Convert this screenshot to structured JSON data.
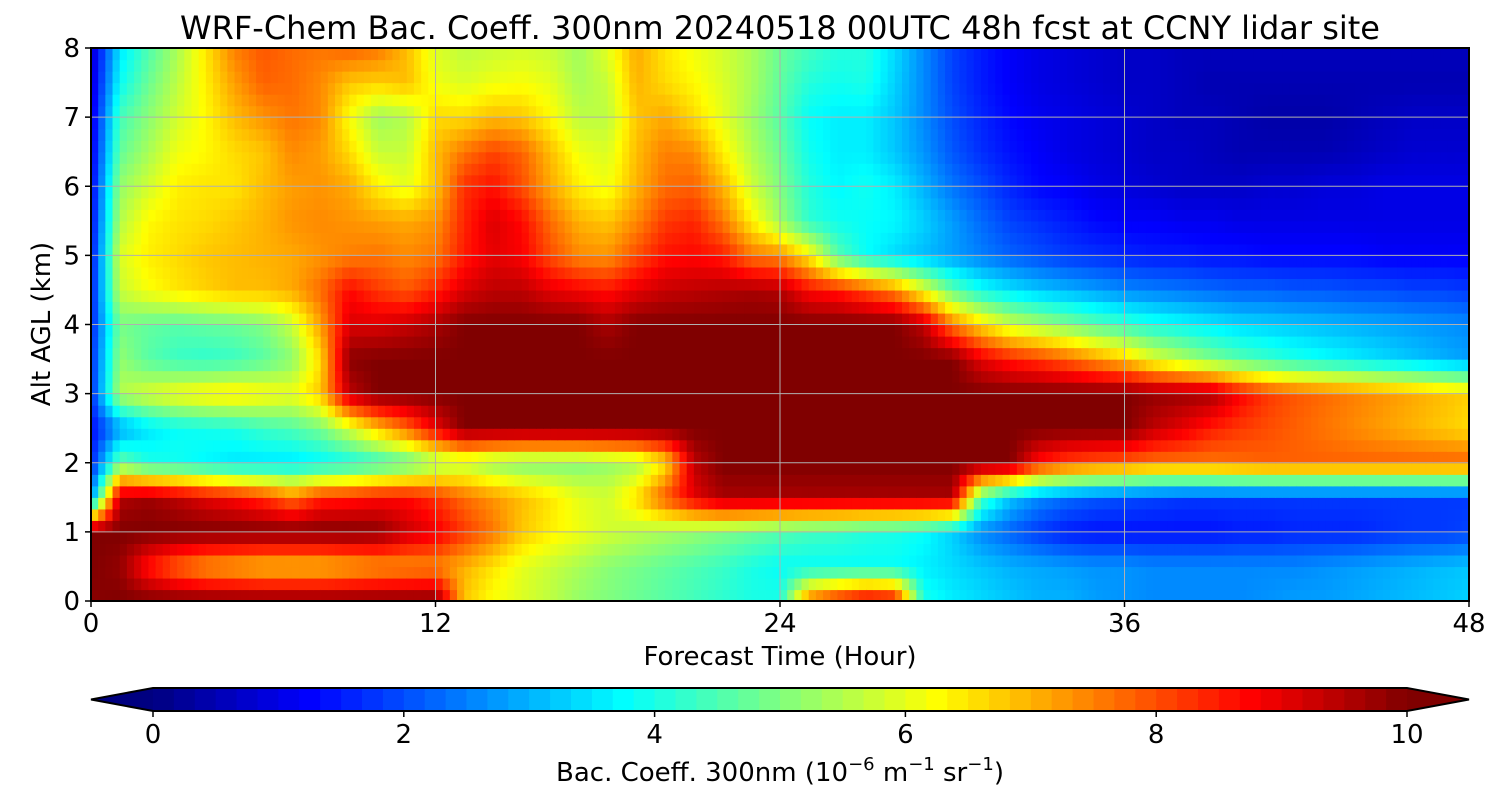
{
  "chart_data": {
    "type": "heatmap",
    "title": "WRF-Chem Bac. Coeff. 300nm  20240518 00UTC 48h fcst at CCNY lidar site",
    "xlabel": "Forecast Time (Hour)",
    "ylabel": "Alt AGL (km)",
    "xlim": [
      0,
      48
    ],
    "ylim": [
      0,
      8
    ],
    "x_ticks": [
      0,
      12,
      24,
      36,
      48
    ],
    "y_ticks": [
      0,
      1,
      2,
      3,
      4,
      5,
      6,
      7,
      8
    ],
    "grid": true,
    "colorbar": {
      "label": "Bac. Coeff. 300nm",
      "units_base": "10",
      "units_exp": "−6",
      "units_m": "m",
      "units_m_exp": "−1",
      "units_sr": "sr",
      "units_sr_exp": "−1",
      "range": [
        0,
        10
      ],
      "ticks": [
        0,
        2,
        4,
        6,
        8,
        10
      ],
      "extend": "both",
      "colormap": "jet",
      "orientation": "horizontal"
    },
    "x": [
      0,
      1,
      2,
      3,
      4,
      5,
      6,
      7,
      8,
      9,
      10,
      11,
      12,
      13,
      14,
      15,
      16,
      17,
      18,
      19,
      20,
      21,
      22,
      23,
      24,
      25,
      26,
      27,
      28,
      29,
      30,
      31,
      32,
      33,
      34,
      35,
      36,
      37,
      38,
      39,
      40,
      41,
      42,
      43,
      44,
      45,
      46,
      47,
      48
    ],
    "y": [
      0,
      0.5,
      1,
      1.5,
      2,
      2.5,
      3,
      3.5,
      4,
      4.5,
      5,
      5.5,
      6,
      6.5,
      7,
      7.5,
      8
    ],
    "values": [
      [
        9.9,
        10.0,
        10.0,
        10.0,
        10.0,
        10.0,
        10.0,
        10.0,
        10.0,
        10.0,
        10.0,
        10.0,
        10.0,
        6.8,
        6.2,
        5.9,
        5.6,
        5.2,
        5.0,
        4.8,
        4.6,
        4.4,
        4.2,
        4.0,
        4.0,
        7.7,
        8.6,
        9.2,
        8.9,
        4.0,
        3.6,
        3.4,
        3.2,
        3.0,
        3.0,
        2.8,
        2.7,
        2.6,
        2.6,
        2.6,
        2.6,
        2.7,
        2.8,
        2.8,
        2.9,
        3.0,
        3.1,
        3.2,
        3.3
      ],
      [
        10.0,
        9.8,
        8.5,
        7.7,
        7.2,
        7.0,
        6.8,
        6.8,
        6.8,
        7.0,
        7.2,
        7.3,
        7.4,
        7.0,
        6.5,
        6.0,
        5.7,
        5.4,
        5.1,
        4.9,
        4.7,
        4.5,
        4.3,
        4.0,
        3.8,
        3.8,
        3.8,
        3.8,
        3.8,
        3.6,
        3.4,
        3.2,
        3.0,
        2.9,
        2.8,
        2.7,
        2.7,
        2.6,
        2.6,
        2.6,
        2.6,
        2.6,
        2.6,
        2.7,
        2.8,
        2.9,
        3.0,
        3.1,
        3.2
      ],
      [
        10.0,
        10.0,
        10.0,
        10.0,
        10.0,
        10.0,
        10.0,
        10.0,
        10.0,
        10.0,
        9.9,
        9.3,
        8.9,
        8.2,
        7.6,
        6.8,
        6.4,
        6.1,
        5.8,
        5.6,
        5.4,
        5.2,
        5.0,
        4.8,
        4.6,
        4.4,
        4.3,
        4.1,
        4.0,
        3.8,
        3.3,
        2.6,
        2.2,
        1.8,
        1.5,
        1.4,
        1.4,
        1.4,
        1.4,
        1.4,
        1.5,
        1.5,
        1.6,
        1.6,
        1.6,
        1.7,
        1.8,
        1.8,
        1.9
      ],
      [
        2.5,
        9.5,
        9.7,
        9.4,
        9.0,
        8.7,
        8.3,
        7.6,
        8.4,
        8.5,
        8.7,
        8.7,
        8.3,
        7.7,
        7.3,
        6.9,
        6.5,
        6.0,
        5.8,
        6.6,
        7.9,
        9.0,
        9.6,
        9.6,
        9.6,
        9.6,
        9.6,
        9.6,
        9.6,
        9.6,
        9.6,
        4.5,
        3.2,
        2.6,
        2.3,
        2.1,
        2.0,
        1.9,
        1.8,
        1.8,
        1.8,
        1.8,
        1.8,
        1.8,
        1.8,
        1.8,
        1.8,
        1.8,
        1.8
      ],
      [
        1.5,
        4.8,
        4.0,
        3.9,
        3.7,
        3.5,
        3.5,
        3.5,
        3.7,
        3.9,
        4.2,
        4.6,
        5.3,
        5.6,
        5.2,
        5.0,
        5.0,
        5.0,
        5.2,
        5.4,
        6.5,
        9.4,
        10.0,
        10.0,
        10.0,
        10.0,
        10.0,
        10.0,
        10.0,
        10.0,
        10.0,
        10.0,
        10.0,
        8.6,
        8.1,
        7.9,
        7.8,
        7.6,
        7.6,
        7.6,
        7.7,
        7.8,
        7.8,
        7.8,
        7.8,
        7.8,
        7.8,
        7.8,
        7.8
      ],
      [
        1.3,
        2.8,
        3.5,
        3.8,
        3.9,
        4.0,
        4.3,
        4.5,
        4.9,
        5.8,
        6.8,
        7.7,
        8.9,
        10.0,
        10.0,
        10.0,
        10.0,
        10.0,
        10.0,
        10.0,
        10.0,
        10.0,
        10.0,
        10.0,
        10.0,
        10.0,
        10.0,
        10.0,
        10.0,
        10.0,
        10.0,
        10.0,
        10.0,
        10.0,
        10.0,
        10.0,
        10.0,
        9.4,
        9.0,
        8.5,
        8.2,
        8.0,
        7.8,
        7.6,
        7.4,
        7.2,
        7.0,
        6.8,
        6.6
      ],
      [
        1.6,
        5.5,
        5.9,
        6.2,
        6.4,
        6.5,
        6.3,
        6.1,
        6.8,
        9.4,
        10.0,
        10.0,
        10.0,
        10.0,
        10.0,
        10.0,
        10.0,
        10.0,
        10.0,
        10.0,
        10.0,
        10.0,
        10.0,
        10.0,
        10.0,
        10.0,
        10.0,
        10.0,
        10.0,
        10.0,
        10.0,
        10.0,
        10.0,
        10.0,
        10.0,
        10.0,
        10.0,
        9.8,
        9.7,
        9.6,
        8.8,
        8.2,
        7.9,
        7.7,
        7.5,
        7.3,
        7.1,
        6.9,
        6.7
      ],
      [
        1.6,
        5.2,
        4.6,
        4.3,
        4.2,
        4.3,
        4.6,
        5.1,
        6.6,
        9.9,
        10.0,
        10.0,
        10.0,
        10.0,
        10.0,
        10.0,
        10.0,
        10.0,
        10.0,
        10.0,
        10.0,
        10.0,
        10.0,
        10.0,
        10.0,
        10.0,
        10.0,
        10.0,
        10.0,
        10.0,
        10.0,
        9.0,
        8.5,
        8.2,
        7.8,
        7.3,
        6.8,
        6.0,
        5.5,
        5.0,
        4.6,
        4.3,
        4.0,
        3.8,
        3.6,
        3.4,
        3.2,
        3.0,
        2.8
      ],
      [
        1.5,
        4.9,
        4.7,
        4.6,
        4.7,
        4.8,
        5.0,
        5.7,
        7.2,
        9.1,
        9.1,
        9.3,
        9.6,
        10.0,
        10.0,
        10.0,
        10.0,
        10.0,
        9.6,
        10.0,
        10.0,
        10.0,
        10.0,
        10.0,
        10.0,
        10.0,
        10.0,
        10.0,
        10.0,
        9.4,
        7.6,
        6.6,
        5.8,
        5.4,
        5.0,
        4.6,
        4.3,
        4.0,
        3.8,
        3.6,
        3.4,
        3.3,
        3.2,
        3.1,
        3.0,
        2.9,
        2.8,
        2.7,
        2.6
      ],
      [
        1.4,
        5.7,
        6.2,
        6.5,
        6.7,
        6.9,
        6.9,
        7.1,
        7.7,
        8.7,
        8.2,
        7.9,
        8.4,
        9.1,
        9.4,
        9.4,
        9.0,
        8.8,
        8.6,
        9.0,
        9.3,
        9.4,
        9.5,
        9.6,
        9.5,
        8.7,
        8.5,
        8.0,
        7.4,
        6.1,
        4.7,
        3.9,
        3.5,
        3.2,
        3.0,
        2.8,
        2.6,
        2.5,
        2.4,
        2.3,
        2.2,
        2.2,
        2.1,
        2.1,
        2.0,
        2.0,
        1.9,
        1.9,
        1.8
      ],
      [
        1.3,
        5.9,
        6.4,
        6.6,
        6.8,
        6.9,
        7.0,
        7.1,
        7.3,
        7.5,
        7.6,
        7.4,
        7.6,
        8.5,
        9.0,
        8.8,
        8.0,
        7.4,
        7.3,
        8.0,
        8.6,
        8.7,
        8.5,
        7.6,
        7.4,
        6.4,
        4.6,
        3.8,
        3.4,
        3.1,
        2.8,
        2.5,
        2.2,
        2.0,
        1.8,
        1.7,
        1.6,
        1.5,
        1.5,
        1.4,
        1.4,
        1.3,
        1.3,
        1.3,
        1.3,
        1.2,
        1.2,
        1.2,
        1.2
      ],
      [
        1.2,
        5.5,
        6.3,
        6.5,
        6.6,
        6.8,
        7.0,
        7.3,
        7.4,
        7.3,
        7.2,
        7.1,
        7.3,
        8.4,
        9.1,
        8.7,
        7.7,
        7.0,
        6.8,
        7.4,
        8.2,
        8.4,
        7.6,
        6.4,
        5.3,
        4.2,
        3.9,
        3.8,
        3.7,
        3.3,
        2.8,
        2.3,
        1.9,
        1.7,
        1.5,
        1.3,
        1.2,
        1.2,
        1.1,
        1.1,
        1.0,
        1.0,
        1.0,
        1.0,
        1.0,
        1.0,
        1.0,
        1.0,
        1.0
      ],
      [
        1.1,
        5.2,
        5.8,
        6.4,
        6.5,
        6.5,
        6.9,
        7.2,
        7.3,
        7.1,
        6.4,
        6.0,
        6.8,
        8.3,
        8.6,
        8.0,
        7.1,
        6.4,
        6.1,
        7.0,
        7.7,
        7.8,
        7.0,
        5.8,
        5.0,
        4.1,
        3.7,
        3.9,
        3.6,
        3.0,
        2.4,
        2.0,
        1.6,
        1.3,
        1.2,
        1.0,
        0.9,
        0.8,
        0.7,
        0.7,
        0.7,
        0.8,
        0.8,
        0.9,
        0.9,
        1.0,
        1.0,
        1.0,
        1.0
      ],
      [
        1.0,
        4.7,
        5.4,
        6.1,
        6.3,
        6.6,
        6.8,
        7.4,
        7.2,
        6.6,
        5.7,
        5.7,
        6.9,
        7.6,
        8.1,
        7.8,
        6.9,
        6.1,
        5.9,
        6.9,
        7.5,
        7.4,
        6.4,
        5.5,
        4.8,
        3.9,
        3.6,
        3.6,
        3.2,
        2.7,
        2.1,
        1.7,
        1.4,
        1.2,
        1.0,
        0.9,
        0.8,
        0.7,
        0.7,
        0.6,
        0.5,
        0.5,
        0.5,
        0.5,
        0.6,
        0.7,
        0.8,
        0.8,
        0.8
      ],
      [
        0.9,
        4.4,
        5.1,
        5.8,
        6.3,
        6.9,
        7.3,
        7.6,
        7.4,
        6.2,
        5.3,
        5.5,
        6.6,
        6.6,
        6.9,
        6.8,
        6.3,
        5.6,
        5.6,
        6.8,
        7.1,
        6.6,
        6.0,
        5.3,
        4.6,
        3.8,
        3.6,
        3.6,
        3.2,
        2.6,
        2.0,
        1.6,
        1.3,
        1.1,
        1.0,
        0.9,
        0.8,
        0.7,
        0.6,
        0.6,
        0.5,
        0.4,
        0.4,
        0.4,
        0.5,
        0.6,
        0.7,
        0.7,
        0.7
      ],
      [
        0.8,
        3.8,
        4.8,
        5.6,
        6.4,
        7.2,
        7.8,
        7.7,
        7.4,
        6.8,
        6.7,
        6.9,
        6.1,
        5.9,
        6.1,
        6.2,
        6.0,
        5.4,
        5.7,
        7.0,
        6.6,
        6.3,
        5.9,
        5.4,
        4.7,
        4.1,
        3.9,
        4.0,
        3.3,
        2.6,
        1.9,
        1.5,
        1.2,
        1.0,
        0.9,
        0.8,
        0.7,
        0.7,
        0.6,
        0.5,
        0.5,
        0.5,
        0.5,
        0.5,
        0.5,
        0.5,
        0.5,
        0.5,
        0.5
      ],
      [
        0.7,
        3.5,
        4.5,
        5.4,
        6.5,
        7.5,
        7.9,
        7.7,
        7.6,
        7.8,
        7.6,
        6.9,
        5.9,
        5.6,
        5.7,
        5.8,
        5.7,
        5.3,
        6.0,
        7.1,
        6.5,
        6.1,
        5.8,
        5.4,
        4.8,
        4.4,
        4.1,
        4.1,
        3.4,
        2.6,
        1.9,
        1.5,
        1.2,
        1.0,
        0.9,
        0.8,
        0.7,
        0.7,
        0.6,
        0.6,
        0.6,
        0.6,
        0.6,
        0.6,
        0.6,
        0.6,
        0.6,
        0.6,
        0.6
      ]
    ]
  }
}
